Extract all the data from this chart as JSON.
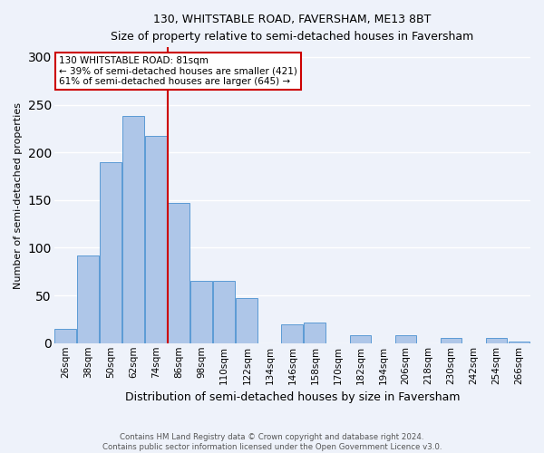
{
  "title": "130, WHITSTABLE ROAD, FAVERSHAM, ME13 8BT",
  "subtitle": "Size of property relative to semi-detached houses in Faversham",
  "xlabel": "Distribution of semi-detached houses by size in Faversham",
  "ylabel": "Number of semi-detached properties",
  "bin_labels": [
    "26sqm",
    "38sqm",
    "50sqm",
    "62sqm",
    "74sqm",
    "86sqm",
    "98sqm",
    "110sqm",
    "122sqm",
    "134sqm",
    "146sqm",
    "158sqm",
    "170sqm",
    "182sqm",
    "194sqm",
    "206sqm",
    "218sqm",
    "230sqm",
    "242sqm",
    "254sqm",
    "266sqm"
  ],
  "bar_heights": [
    15,
    92,
    190,
    238,
    217,
    147,
    65,
    65,
    47,
    0,
    20,
    22,
    0,
    8,
    0,
    8,
    0,
    5,
    0,
    5,
    2
  ],
  "bar_color": "#aec6e8",
  "bar_edge_color": "#5b9bd5",
  "vline_x": 4.5,
  "annotation_title": "130 WHITSTABLE ROAD: 81sqm",
  "annotation_line1": "← 39% of semi-detached houses are smaller (421)",
  "annotation_line2": "61% of semi-detached houses are larger (645) →",
  "vline_color": "#cc0000",
  "bg_color": "#eef2fa",
  "grid_color": "#ffffff",
  "footer_line1": "Contains HM Land Registry data © Crown copyright and database right 2024.",
  "footer_line2": "Contains public sector information licensed under the Open Government Licence v3.0.",
  "ylim": [
    0,
    310
  ],
  "yticks": [
    0,
    50,
    100,
    150,
    200,
    250,
    300
  ]
}
